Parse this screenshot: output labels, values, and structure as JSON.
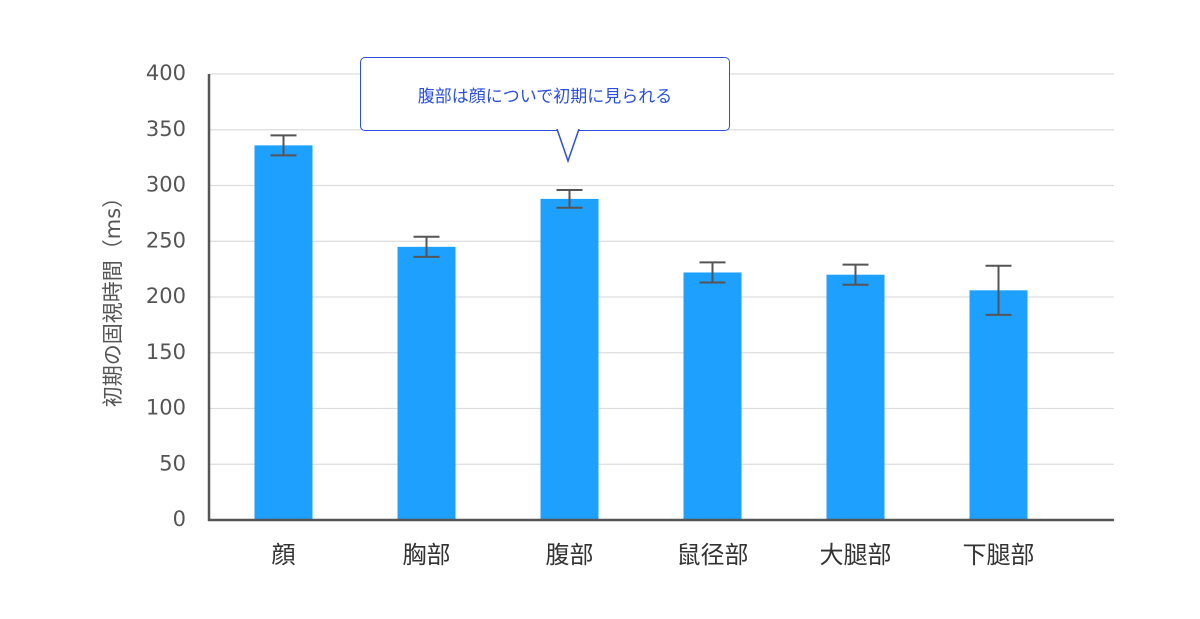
{
  "chart_data": {
    "type": "bar",
    "categories": [
      "顔",
      "胸部",
      "腹部",
      "鼠径部",
      "大腿部",
      "下腿部"
    ],
    "values": [
      336,
      245,
      288,
      222,
      220,
      206
    ],
    "error": [
      9,
      9,
      8,
      9,
      9,
      22
    ],
    "ylabel": "初期の固視時間（ms）",
    "xlabel": "",
    "ylim": [
      0,
      400
    ],
    "yticks": [
      0,
      50,
      100,
      150,
      200,
      250,
      300,
      350,
      400
    ],
    "grid": true,
    "annotation": {
      "text": "腹部は顔についで初期に見られる",
      "target_category": "腹部"
    },
    "colors": {
      "bar": "#1ea0ff",
      "error_bar": "#555555",
      "grid": "#dddddd",
      "axis": "#555555",
      "annotation": "#2a4fe0"
    }
  }
}
